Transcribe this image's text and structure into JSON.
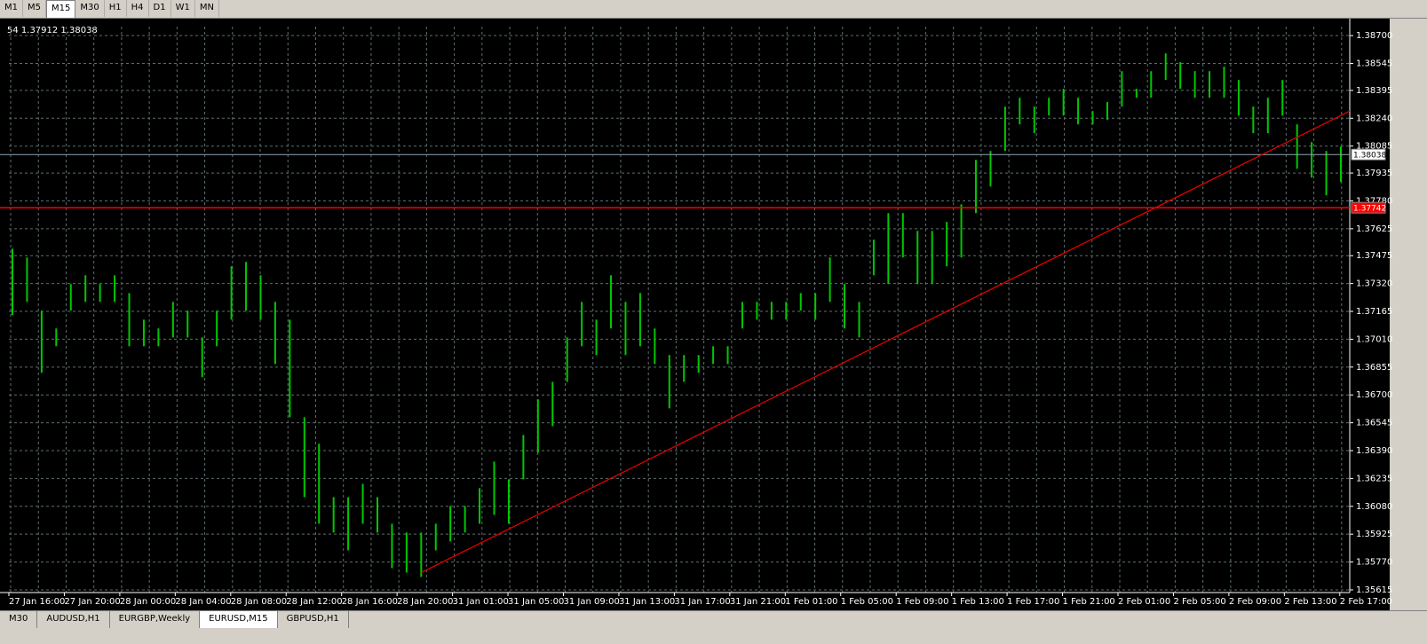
{
  "toolbar": {
    "timeframes": [
      "M1",
      "M5",
      "M15",
      "M30",
      "H1",
      "H4",
      "D1",
      "W1",
      "MN"
    ],
    "active": "M15"
  },
  "chart_data": {
    "type": "bar",
    "info": "54 1.37912 1.38038",
    "ylim": [
      1.356,
      1.3875
    ],
    "yticks": [
      {
        "value": 1.387,
        "label": "1.38700"
      },
      1.38545,
      1.38395,
      {
        "value": 1.3824,
        "label": "1.38240"
      },
      1.38085,
      1.37935,
      {
        "value": 1.3778,
        "label": "1.37780"
      },
      1.37625,
      1.37475,
      {
        "value": 1.3732,
        "label": "1.37320"
      },
      1.37165,
      {
        "value": 1.3701,
        "label": "1.37010"
      },
      1.36855,
      {
        "value": 1.367,
        "label": "1.36700"
      },
      1.36545,
      {
        "value": 1.3639,
        "label": "1.36390"
      },
      1.36235,
      {
        "value": 1.3608,
        "label": "1.36080"
      },
      1.35925,
      {
        "value": 1.3577,
        "label": "1.35770"
      },
      1.35615
    ],
    "categories": [
      "27 Jan 16:00",
      "27 Jan 20:00",
      "28 Jan 00:00",
      "28 Jan 04:00",
      "28 Jan 08:00",
      "28 Jan 12:00",
      "28 Jan 16:00",
      "28 Jan 20:00",
      "31 Jan 01:00",
      "31 Jan 05:00",
      "31 Jan 09:00",
      "31 Jan 13:00",
      "31 Jan 17:00",
      "31 Jan 21:00",
      "1 Feb 01:00",
      "1 Feb 05:00",
      "1 Feb 09:00",
      "1 Feb 13:00",
      "1 Feb 17:00",
      "1 Feb 21:00",
      "2 Feb 01:00",
      "2 Feb 05:00",
      "2 Feb 09:00",
      "2 Feb 13:00",
      "2 Feb 17:00"
    ],
    "color": "#00c800",
    "grid": true,
    "bars": {
      "high": [
        1.37514,
        1.37465,
        1.37169,
        1.3707,
        1.37317,
        1.37366,
        1.37317,
        1.37366,
        1.37267,
        1.37119,
        1.3707,
        1.37218,
        1.37169,
        1.3702,
        1.37169,
        1.37416,
        1.3744,
        1.37366,
        1.37218,
        1.37119,
        1.36576,
        1.36428,
        1.36131,
        1.36131,
        1.36205,
        1.36131,
        1.35983,
        1.35934,
        1.35934,
        1.35983,
        1.36082,
        1.36082,
        1.36181,
        1.36329,
        1.3623,
        1.36477,
        1.36675,
        1.36773,
        1.3702,
        1.37218,
        1.37119,
        1.37366,
        1.37218,
        1.37267,
        1.3707,
        1.36922,
        1.36922,
        1.36922,
        1.36971,
        1.36971,
        1.37218,
        1.37218,
        1.37218,
        1.37218,
        1.37267,
        1.37267,
        1.37465,
        1.37317,
        1.37218,
        1.37564,
        1.37712,
        1.37712,
        1.37613,
        1.37613,
        1.37663,
        1.37761,
        1.38008,
        1.38058,
        1.38305,
        1.38354,
        1.38305,
        1.38354,
        1.38404,
        1.38354,
        1.3828,
        1.3833,
        1.38502,
        1.38404,
        1.38502,
        1.38601,
        1.38552,
        1.38502,
        1.38502,
        1.38527,
        1.38453,
        1.38305,
        1.38354,
        1.38453,
        1.38206,
        1.38107,
        1.38058,
        1.38083
      ],
      "low": [
        1.37144,
        1.37218,
        1.36823,
        1.36971,
        1.37169,
        1.37218,
        1.37218,
        1.37218,
        1.36971,
        1.36971,
        1.36971,
        1.3702,
        1.3702,
        1.36798,
        1.36971,
        1.37119,
        1.37169,
        1.37119,
        1.36872,
        1.36576,
        1.36131,
        1.35983,
        1.35934,
        1.35835,
        1.35983,
        1.35934,
        1.35736,
        1.35711,
        1.35687,
        1.35835,
        1.35884,
        1.35934,
        1.35983,
        1.36032,
        1.35983,
        1.3623,
        1.36378,
        1.36526,
        1.36773,
        1.36971,
        1.36922,
        1.3707,
        1.36922,
        1.36971,
        1.36872,
        1.36625,
        1.36773,
        1.36823,
        1.36872,
        1.36872,
        1.3707,
        1.37119,
        1.37119,
        1.37119,
        1.37169,
        1.37119,
        1.37218,
        1.3707,
        1.3702,
        1.37366,
        1.37317,
        1.37465,
        1.37317,
        1.37317,
        1.37416,
        1.37465,
        1.37712,
        1.3786,
        1.38058,
        1.38206,
        1.38157,
        1.38255,
        1.38255,
        1.38206,
        1.38206,
        1.38231,
        1.38305,
        1.38354,
        1.38354,
        1.38453,
        1.38404,
        1.38354,
        1.38354,
        1.38354,
        1.38255,
        1.38157,
        1.38157,
        1.38255,
        1.37959,
        1.3791,
        1.37811,
        1.37885
      ]
    },
    "bid_line": {
      "value": 1.38038,
      "label": "1.38038",
      "color": "#8fa5b5"
    },
    "alert_line": {
      "value": 1.37742,
      "label": "1.37742",
      "color": "#ff0000"
    },
    "trendline": {
      "start": 1.35711,
      "end": 1.3828,
      "color": "#e00000"
    }
  },
  "tabs": {
    "items": [
      "M30",
      "AUDUSD,H1",
      "EURGBP,Weekly",
      "EURUSD,M15",
      "GBPUSD,H1"
    ],
    "active": "EURUSD,M15"
  }
}
